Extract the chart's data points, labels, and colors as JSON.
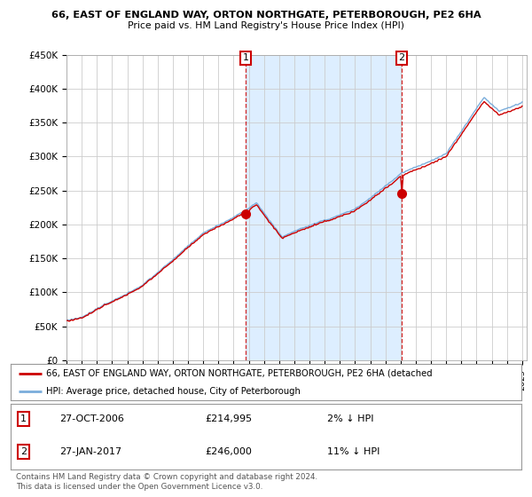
{
  "title": "66, EAST OF ENGLAND WAY, ORTON NORTHGATE, PETERBOROUGH, PE2 6HA",
  "subtitle": "Price paid vs. HM Land Registry's House Price Index (HPI)",
  "ylabel_ticks": [
    "£0",
    "£50K",
    "£100K",
    "£150K",
    "£200K",
    "£250K",
    "£300K",
    "£350K",
    "£400K",
    "£450K"
  ],
  "ylim": [
    0,
    450000
  ],
  "yticks": [
    0,
    50000,
    100000,
    150000,
    200000,
    250000,
    300000,
    350000,
    400000,
    450000
  ],
  "sale1_date": "27-OCT-2006",
  "sale1_price": 214995,
  "sale1_x": 2006.79,
  "sale1_hpi_diff": "2% ↓ HPI",
  "sale2_date": "27-JAN-2017",
  "sale2_price": 246000,
  "sale2_x": 2017.07,
  "sale2_hpi_diff": "11% ↓ HPI",
  "legend_line1": "66, EAST OF ENGLAND WAY, ORTON NORTHGATE, PETERBOROUGH, PE2 6HA (detached",
  "legend_line2": "HPI: Average price, detached house, City of Peterborough",
  "footer": "Contains HM Land Registry data © Crown copyright and database right 2024.\nThis data is licensed under the Open Government Licence v3.0.",
  "line1_color": "#cc0000",
  "line2_color": "#7aaddb",
  "shade_color": "#ddeeff",
  "vline_color": "#cc0000",
  "background_color": "#ffffff",
  "grid_color": "#cccccc",
  "xlim_left": 1995.0,
  "xlim_right": 2025.3
}
